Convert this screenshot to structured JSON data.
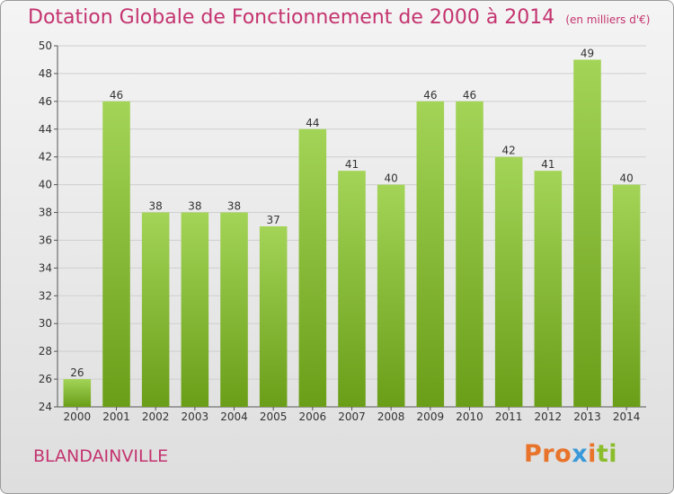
{
  "header": {
    "title": "Dotation Globale de Fonctionnement de 2000 à 2014",
    "unit": "(en milliers d'€)"
  },
  "commune": "BLANDAINVILLE",
  "logo": {
    "text": "Proxiti",
    "colors": [
      "#e8732a",
      "#e8732a",
      "#e8732a",
      "#3a9ad9",
      "#e8732a",
      "#8bbd2b",
      "#8bbd2b"
    ]
  },
  "colors": {
    "bar_light": "#a3d457",
    "bar_dark": "#6a9e18",
    "title": "#c4336f",
    "grid": "#cfcfcf"
  },
  "chart_data": {
    "type": "bar",
    "title": "Dotation Globale de Fonctionnement de 2000 à 2014",
    "subtitle": "(en milliers d'€)",
    "categories": [
      "2000",
      "2001",
      "2002",
      "2003",
      "2004",
      "2005",
      "2006",
      "2007",
      "2008",
      "2009",
      "2010",
      "2011",
      "2012",
      "2013",
      "2014"
    ],
    "values": [
      26,
      46,
      38,
      38,
      38,
      37,
      44,
      41,
      40,
      46,
      46,
      42,
      41,
      49,
      40
    ],
    "ylim": [
      24,
      50
    ],
    "yticks": [
      24,
      26,
      28,
      30,
      32,
      34,
      36,
      38,
      40,
      42,
      44,
      46,
      48,
      50
    ],
    "grid": true,
    "data_labels": true
  }
}
